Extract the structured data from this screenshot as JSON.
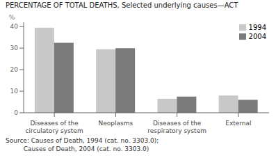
{
  "chart_data": {
    "type": "bar",
    "title": "PERCENTAGE OF TOTAL DEATHS,  Selected underlying causes—ACT",
    "y_label": "%",
    "categories": [
      "Diseases of the\ncirculatory system",
      "Neoplasms",
      "Diseases of the\nrespiratory system",
      "External"
    ],
    "series": [
      {
        "name": "1994",
        "color": "#c8c8c8",
        "values": [
          39.5,
          29.5,
          6.5,
          8.0
        ]
      },
      {
        "name": "2004",
        "color": "#7a7a7a",
        "values": [
          32.5,
          30.0,
          7.5,
          6.0
        ]
      }
    ],
    "ylim": [
      0,
      42
    ],
    "yticks": [
      0,
      10,
      20,
      30,
      40
    ],
    "grid": false,
    "legend": "upper right",
    "annotations": [
      "Source: Causes of Death, 1994 (cat. no. 3303.0);",
      "         Causes of Death, 2004 (cat. no. 3303.0)"
    ]
  }
}
